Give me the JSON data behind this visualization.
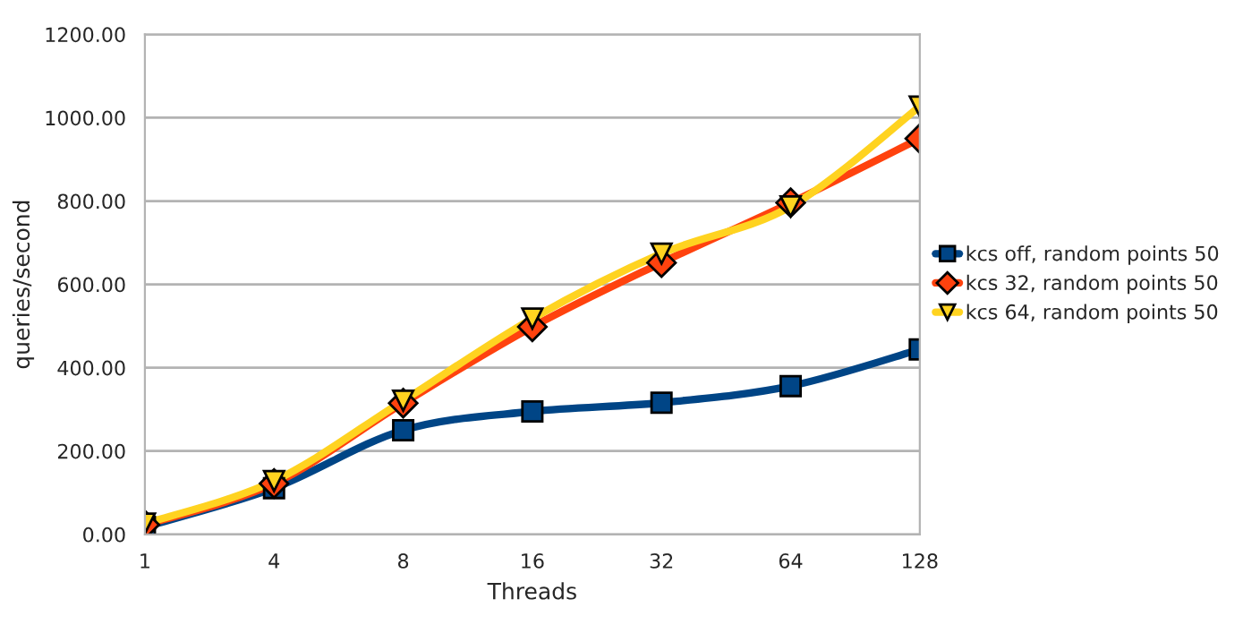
{
  "chart_data": {
    "type": "line",
    "xlabel": "Threads",
    "ylabel": "queries/second",
    "categories": [
      "1",
      "4",
      "8",
      "16",
      "32",
      "64",
      "128"
    ],
    "series": [
      {
        "name": "kcs off, random points 50",
        "color": "#004586",
        "marker": "square",
        "values": [
          18,
          111,
          250,
          295,
          316,
          356,
          444
        ]
      },
      {
        "name": "kcs 32, random points 50",
        "color": "#ff420e",
        "marker": "diamond",
        "values": [
          23,
          122,
          315,
          498,
          652,
          796,
          950
        ]
      },
      {
        "name": "kcs 64, random points 50",
        "color": "#ffd320",
        "marker": "triangle_down",
        "values": [
          26,
          128,
          321,
          518,
          674,
          787,
          1027
        ]
      }
    ],
    "ylim": [
      0,
      1200
    ],
    "yticks": [
      {
        "value": 0,
        "label": "0.00"
      },
      {
        "value": 200,
        "label": "200.00"
      },
      {
        "value": 400,
        "label": "400.00"
      },
      {
        "value": 600,
        "label": "600.00"
      },
      {
        "value": 800,
        "label": "800.00"
      },
      {
        "value": 1000,
        "label": "1000.00"
      },
      {
        "value": 1200,
        "label": "1200.00"
      }
    ],
    "grid": "y",
    "legend": "right",
    "line_style": "solid"
  }
}
